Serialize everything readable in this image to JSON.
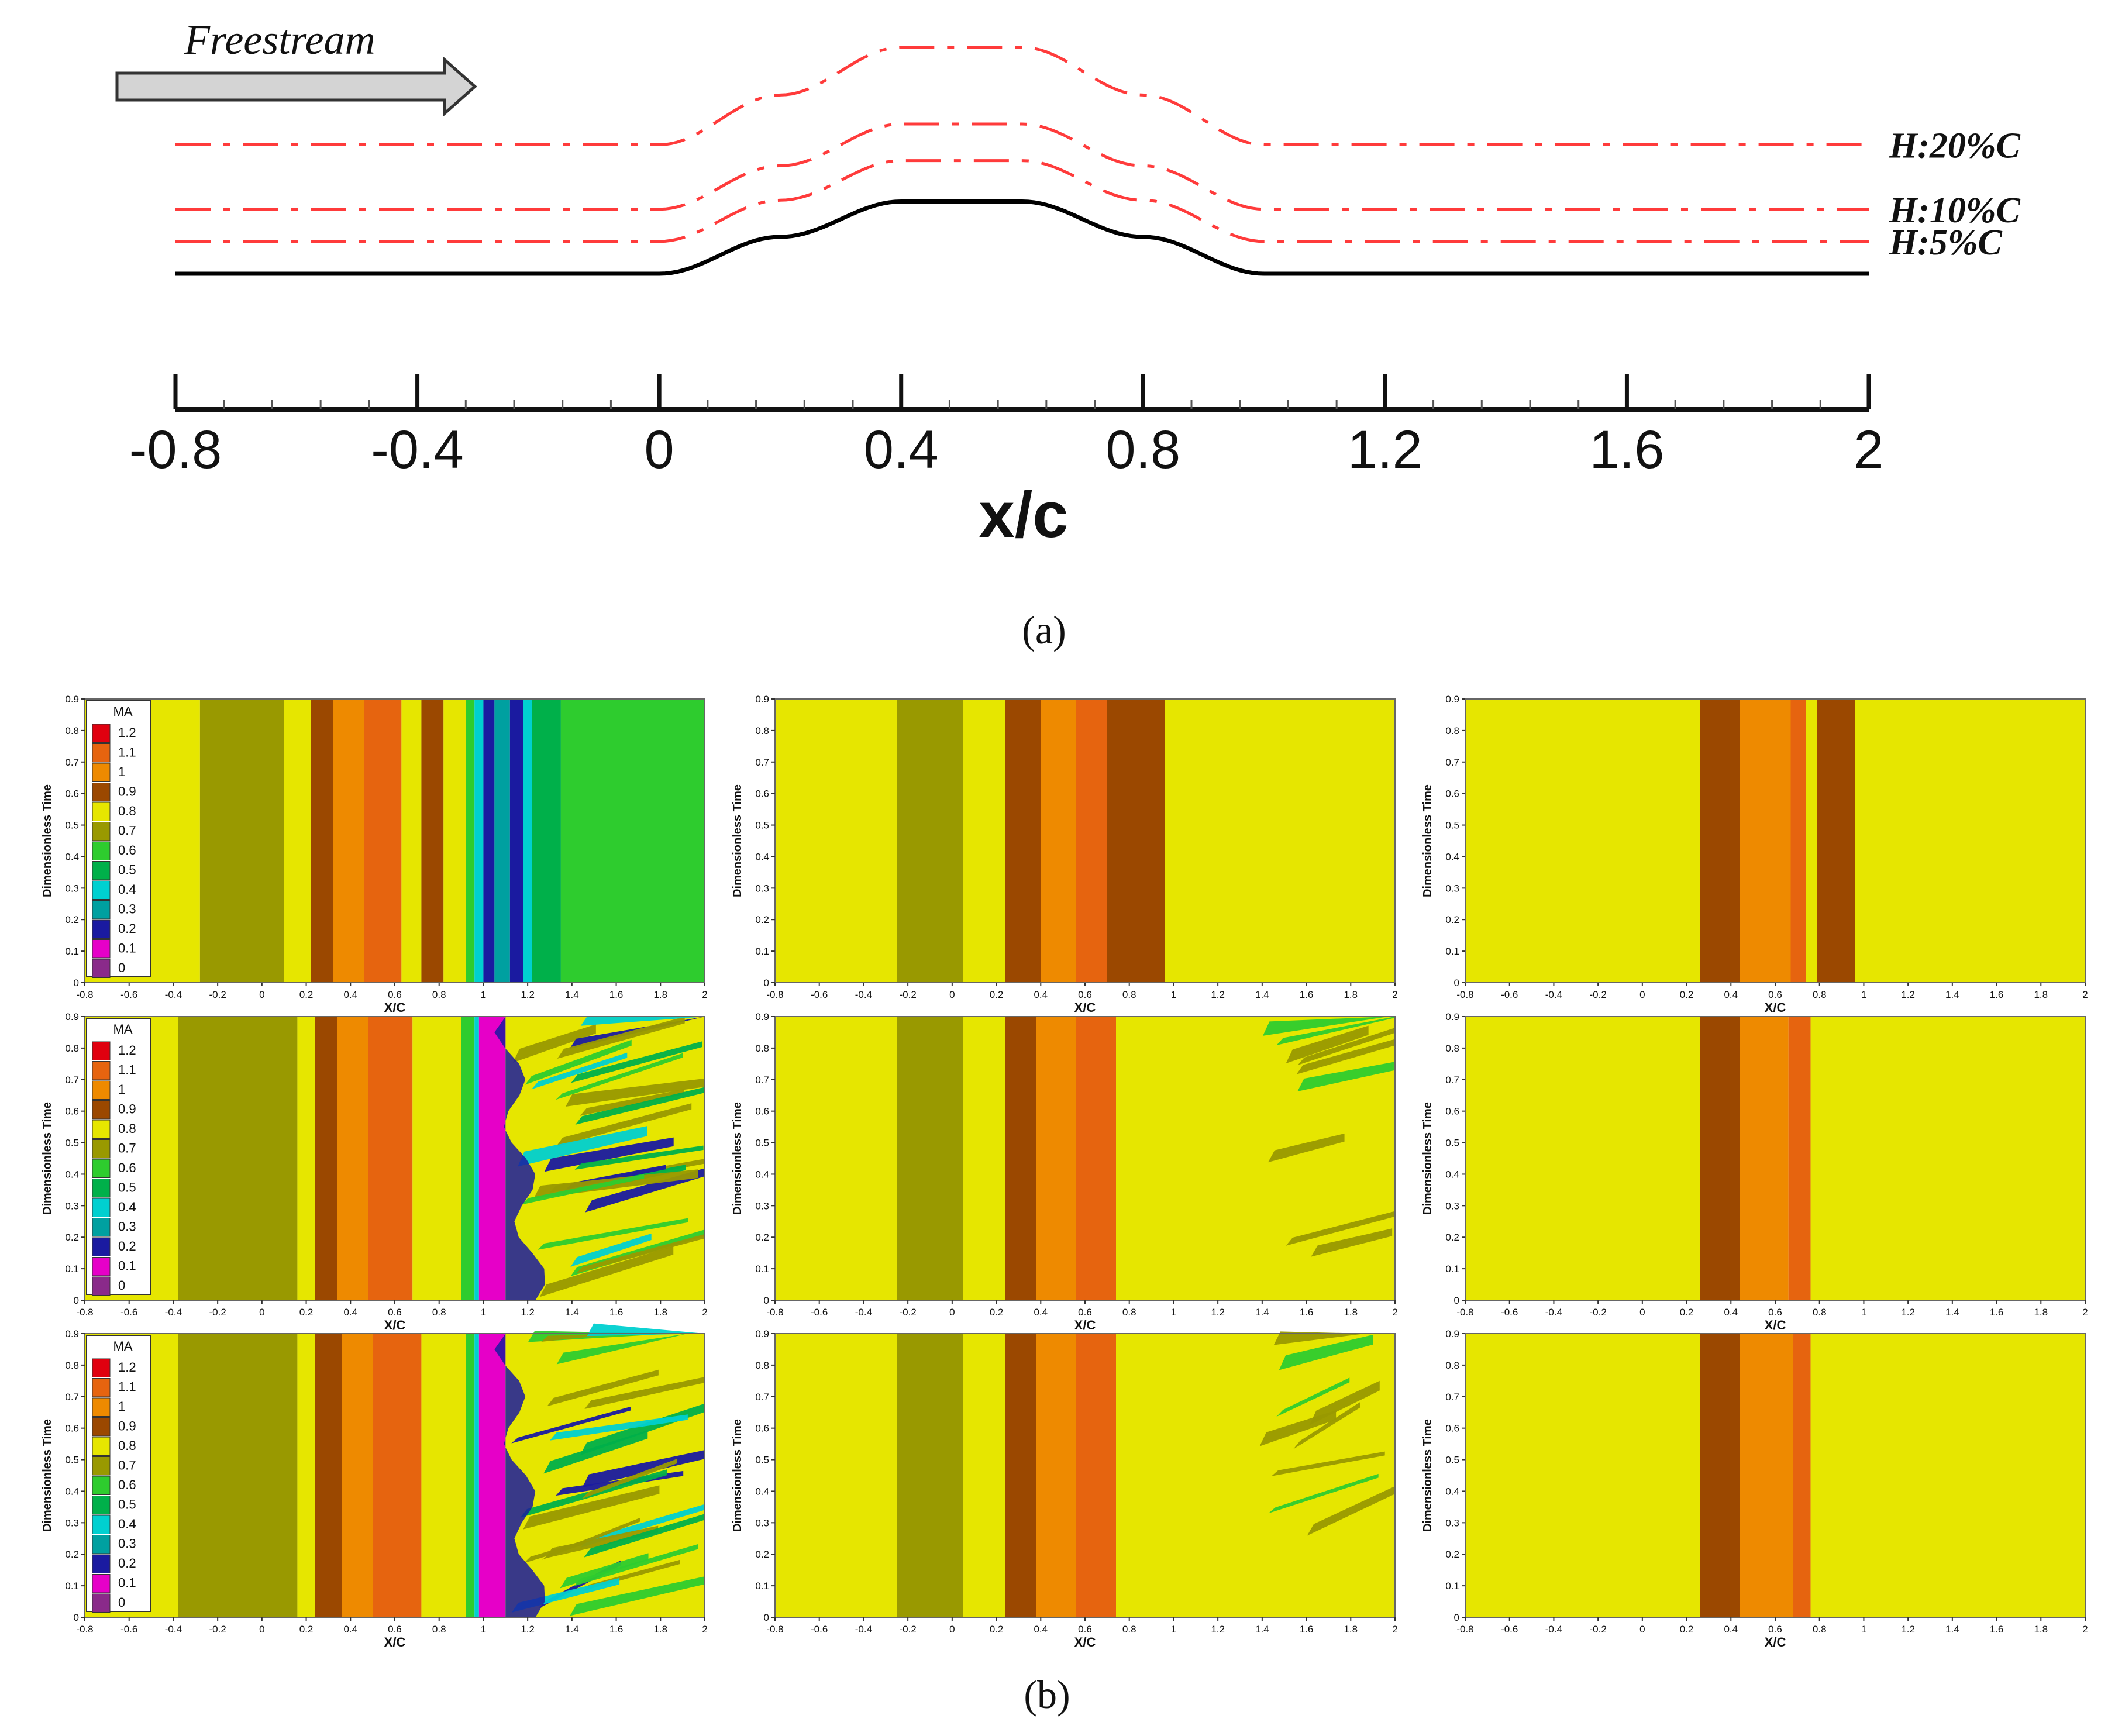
{
  "chart_data": [
    {
      "type": "line",
      "panel": "a",
      "title": "",
      "freestream_label": "Freestream",
      "xlabel": "x/c",
      "xlim": [
        -0.8,
        2
      ],
      "ticks": [
        "-0.8",
        "-0.4",
        "0",
        "0.4",
        "0.8",
        "1.2",
        "1.6",
        "2"
      ],
      "series": [
        {
          "name": "surface",
          "style": "solid",
          "color": "#000000",
          "x": [
            -0.8,
            0.0,
            0.2,
            0.4,
            0.6,
            0.8,
            1.0,
            2.0
          ],
          "y": [
            0,
            0,
            2.5,
            4.9,
            4.9,
            2.5,
            0,
            0
          ]
        },
        {
          "name": "H:5%C",
          "label": "H:5%C",
          "style": "dashdot",
          "color": "#ff3b3b",
          "offset": 5
        },
        {
          "name": "H:10%C",
          "label": "H:10%C",
          "style": "dashdot",
          "color": "#ff3b3b",
          "offset": 10
        },
        {
          "name": "H:20%C",
          "label": "H:20%C",
          "style": "dashdot",
          "color": "#ff3b3b",
          "offset": 20
        }
      ],
      "caption": "(a)"
    },
    {
      "type": "heatmap",
      "panel": "b",
      "xlabel": "X/C",
      "ylabel": "Dimensionless Time",
      "xlim": [
        -0.8,
        2
      ],
      "ylim": [
        0,
        0.9
      ],
      "xticks": [
        "-0.8",
        "-0.6",
        "-0.4",
        "-0.2",
        "0",
        "0.2",
        "0.4",
        "0.6",
        "0.8",
        "1",
        "1.2",
        "1.4",
        "1.6",
        "1.8",
        "2"
      ],
      "yticks": [
        "0",
        "0.1",
        "0.2",
        "0.3",
        "0.4",
        "0.5",
        "0.6",
        "0.7",
        "0.8",
        "0.9"
      ],
      "legend": {
        "title": "MA",
        "levels": [
          "1.2",
          "1.1",
          "1",
          "0.9",
          "0.8",
          "0.7",
          "0.6",
          "0.5",
          "0.4",
          "0.3",
          "0.2",
          "0.1",
          "0"
        ],
        "colors": [
          "#e0000f",
          "#e6640f",
          "#ee8a00",
          "#9b4800",
          "#e6e600",
          "#999900",
          "#2ecc2e",
          "#00b04a",
          "#00d0d0",
          "#00a0a0",
          "#1a1aa0",
          "#e600c8",
          "#8a2a8a"
        ]
      },
      "caption": "(b)",
      "panels": [
        {
          "row": 1,
          "col": 1,
          "legend": true,
          "turbulent": false,
          "bands": [
            [
              -0.8,
              -0.28,
              0.8
            ],
            [
              -0.28,
              0.1,
              0.7
            ],
            [
              0.1,
              0.22,
              0.8
            ],
            [
              0.22,
              0.32,
              0.9
            ],
            [
              0.32,
              0.46,
              1.0
            ],
            [
              0.46,
              0.63,
              1.1
            ],
            [
              0.63,
              0.72,
              0.8
            ],
            [
              0.72,
              0.82,
              0.9
            ],
            [
              0.82,
              0.92,
              0.8
            ],
            [
              0.92,
              0.96,
              0.6
            ],
            [
              0.96,
              1.0,
              0.4
            ],
            [
              1.0,
              1.05,
              0.2
            ],
            [
              1.05,
              1.12,
              0.3
            ],
            [
              1.12,
              1.18,
              0.2
            ],
            [
              1.18,
              1.22,
              0.4
            ],
            [
              1.22,
              1.35,
              0.5
            ],
            [
              1.35,
              1.55,
              0.6
            ],
            [
              1.55,
              2.0,
              0.6
            ]
          ]
        },
        {
          "row": 1,
          "col": 2,
          "legend": false,
          "turbulent": false,
          "bands": [
            [
              -0.8,
              -0.25,
              0.8
            ],
            [
              -0.25,
              0.05,
              0.7
            ],
            [
              0.05,
              0.24,
              0.8
            ],
            [
              0.24,
              0.4,
              0.9
            ],
            [
              0.4,
              0.56,
              1.0
            ],
            [
              0.56,
              0.7,
              1.1
            ],
            [
              0.7,
              0.96,
              0.9
            ],
            [
              0.96,
              2.0,
              0.8
            ]
          ]
        },
        {
          "row": 1,
          "col": 3,
          "legend": false,
          "turbulent": false,
          "bands": [
            [
              -0.8,
              0.26,
              0.8
            ],
            [
              0.26,
              0.44,
              0.9
            ],
            [
              0.44,
              0.67,
              1.0
            ],
            [
              0.67,
              0.74,
              1.1
            ],
            [
              0.74,
              0.79,
              0.8
            ],
            [
              0.79,
              0.96,
              0.9
            ],
            [
              0.96,
              2.0,
              0.8
            ]
          ]
        },
        {
          "row": 2,
          "col": 1,
          "legend": true,
          "turbulent": true,
          "bands": [
            [
              -0.8,
              -0.38,
              0.8
            ],
            [
              -0.38,
              0.16,
              0.7
            ],
            [
              0.16,
              0.24,
              0.8
            ],
            [
              0.24,
              0.34,
              0.9
            ],
            [
              0.34,
              0.48,
              1.0
            ],
            [
              0.48,
              0.68,
              1.1
            ],
            [
              0.68,
              0.74,
              0.8
            ],
            [
              0.74,
              0.9,
              0.8
            ],
            [
              0.9,
              0.96,
              0.6
            ],
            [
              0.96,
              0.98,
              0.4
            ],
            [
              0.98,
              1.1,
              0.1
            ],
            [
              1.1,
              2.0,
              0.8
            ]
          ]
        },
        {
          "row": 2,
          "col": 2,
          "legend": false,
          "turbulent": true,
          "bands": [
            [
              -0.8,
              -0.25,
              0.8
            ],
            [
              -0.25,
              0.05,
              0.7
            ],
            [
              0.05,
              0.24,
              0.8
            ],
            [
              0.24,
              0.38,
              0.9
            ],
            [
              0.38,
              0.56,
              1.0
            ],
            [
              0.56,
              0.74,
              1.1
            ],
            [
              0.74,
              2.0,
              0.8
            ]
          ]
        },
        {
          "row": 2,
          "col": 3,
          "legend": false,
          "turbulent": false,
          "bands": [
            [
              -0.8,
              0.26,
              0.8
            ],
            [
              0.26,
              0.44,
              0.9
            ],
            [
              0.44,
              0.66,
              1.0
            ],
            [
              0.66,
              0.76,
              1.1
            ],
            [
              0.76,
              2.0,
              0.8
            ]
          ]
        },
        {
          "row": 3,
          "col": 1,
          "legend": true,
          "turbulent": true,
          "bands": [
            [
              -0.8,
              -0.38,
              0.8
            ],
            [
              -0.38,
              0.16,
              0.7
            ],
            [
              0.16,
              0.24,
              0.8
            ],
            [
              0.24,
              0.36,
              0.9
            ],
            [
              0.36,
              0.5,
              1.0
            ],
            [
              0.5,
              0.72,
              1.1
            ],
            [
              0.72,
              0.76,
              0.8
            ],
            [
              0.76,
              0.92,
              0.8
            ],
            [
              0.92,
              0.96,
              0.6
            ],
            [
              0.96,
              0.98,
              0.4
            ],
            [
              0.98,
              1.1,
              0.1
            ],
            [
              1.1,
              2.0,
              0.8
            ]
          ]
        },
        {
          "row": 3,
          "col": 2,
          "legend": false,
          "turbulent": true,
          "bands": [
            [
              -0.8,
              -0.25,
              0.8
            ],
            [
              -0.25,
              0.05,
              0.7
            ],
            [
              0.05,
              0.24,
              0.8
            ],
            [
              0.24,
              0.38,
              0.9
            ],
            [
              0.38,
              0.56,
              1.0
            ],
            [
              0.56,
              0.74,
              1.1
            ],
            [
              0.74,
              2.0,
              0.8
            ]
          ]
        },
        {
          "row": 3,
          "col": 3,
          "legend": false,
          "turbulent": false,
          "bands": [
            [
              -0.8,
              0.26,
              0.8
            ],
            [
              0.26,
              0.44,
              0.9
            ],
            [
              0.44,
              0.68,
              1.0
            ],
            [
              0.68,
              0.76,
              1.1
            ],
            [
              0.76,
              2.0,
              0.8
            ]
          ]
        }
      ]
    }
  ]
}
